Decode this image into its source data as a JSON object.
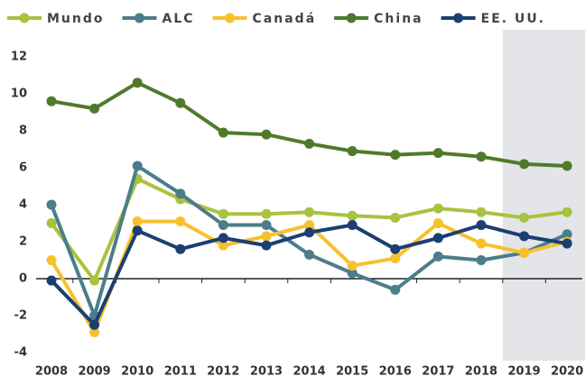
{
  "chart_data": {
    "type": "line",
    "categories": [
      "2008",
      "2009",
      "2010",
      "2011",
      "2012",
      "2013",
      "2014",
      "2015",
      "2016",
      "2017",
      "2018",
      "2019",
      "2020"
    ],
    "series": [
      {
        "name": "Mundo",
        "color": "#a9c23f",
        "values": [
          3.0,
          -0.1,
          5.4,
          4.3,
          3.5,
          3.5,
          3.6,
          3.4,
          3.3,
          3.8,
          3.6,
          3.3,
          3.6
        ]
      },
      {
        "name": "ALC",
        "color": "#4b7d8a",
        "values": [
          4.0,
          -2.0,
          6.1,
          4.6,
          2.9,
          2.9,
          1.3,
          0.3,
          -0.6,
          1.2,
          1.0,
          1.4,
          2.4
        ]
      },
      {
        "name": "Canadá",
        "color": "#f7c12d",
        "values": [
          1.0,
          -2.9,
          3.1,
          3.1,
          1.8,
          2.3,
          2.9,
          0.7,
          1.1,
          3.0,
          1.9,
          1.4,
          2.0
        ]
      },
      {
        "name": "China",
        "color": "#4f7a2c",
        "values": [
          9.6,
          9.2,
          10.6,
          9.5,
          7.9,
          7.8,
          7.3,
          6.9,
          6.7,
          6.8,
          6.6,
          6.2,
          6.1
        ]
      },
      {
        "name": "EE. UU.",
        "color": "#1b3f72",
        "values": [
          -0.1,
          -2.5,
          2.6,
          1.6,
          2.2,
          1.8,
          2.5,
          2.9,
          1.6,
          2.2,
          2.9,
          2.3,
          1.9
        ]
      }
    ],
    "ylim": [
      -4,
      12
    ],
    "yticks": [
      -4,
      -2,
      0,
      2,
      4,
      6,
      8,
      10,
      12
    ],
    "grid": false,
    "legend": "top",
    "shaded_from": "2019",
    "shade_color": "#e3e5e8"
  }
}
